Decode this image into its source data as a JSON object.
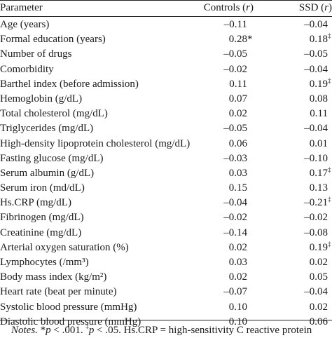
{
  "table": {
    "headers": {
      "parameter": "Parameter",
      "controls": "Controls (r)",
      "ssd": "SSD (r)"
    },
    "rows": [
      {
        "parameter": "Age (years)",
        "controls": "–0.11",
        "controls_mark": "",
        "ssd": "–0.04",
        "ssd_mark": ""
      },
      {
        "parameter": "Formal education (years)",
        "controls": "0.28",
        "controls_mark": "*",
        "ssd": "0.18",
        "ssd_mark": "‡"
      },
      {
        "parameter": "Number of drugs",
        "controls": "–0.05",
        "controls_mark": "",
        "ssd": "–0.05",
        "ssd_mark": ""
      },
      {
        "parameter": "Comorbidity",
        "controls": "–0.02",
        "controls_mark": "",
        "ssd": "–0.04",
        "ssd_mark": ""
      },
      {
        "parameter": "Barthel index (before admission)",
        "controls": "0.11",
        "controls_mark": "",
        "ssd": "0.19",
        "ssd_mark": "‡"
      },
      {
        "parameter": "Hemoglobin (g/dL)",
        "controls": "0.07",
        "controls_mark": "",
        "ssd": "0.08",
        "ssd_mark": ""
      },
      {
        "parameter": "Total cholesterol (mg/dL)",
        "controls": "0.02",
        "controls_mark": "",
        "ssd": "0.11",
        "ssd_mark": ""
      },
      {
        "parameter": "Triglycerides (mg/dL)",
        "controls": "–0.05",
        "controls_mark": "",
        "ssd": "–0.04",
        "ssd_mark": ""
      },
      {
        "parameter": "High-density lipoprotein cholesterol (mg/dL)",
        "controls": "0.06",
        "controls_mark": "",
        "ssd": "0.01",
        "ssd_mark": ""
      },
      {
        "parameter": "Fasting glucose (mg/dL)",
        "controls": "–0.03",
        "controls_mark": "",
        "ssd": "–0.10",
        "ssd_mark": ""
      },
      {
        "parameter": "Serum albumin (g/dL)",
        "controls": "0.03",
        "controls_mark": "",
        "ssd": "0.17",
        "ssd_mark": "‡"
      },
      {
        "parameter": "Serum iron (md/dL)",
        "controls": "0.15",
        "controls_mark": "",
        "ssd": "0.13",
        "ssd_mark": ""
      },
      {
        "parameter": "Hs.CRP (mg/dL)",
        "controls": "–0.04",
        "controls_mark": "",
        "ssd": "–0.21",
        "ssd_mark": "‡"
      },
      {
        "parameter": "Fibrinogen (mg/dL)",
        "controls": "–0.02",
        "controls_mark": "",
        "ssd": "–0.02",
        "ssd_mark": ""
      },
      {
        "parameter": "Creatinine (mg/dL)",
        "controls": "–0.14",
        "controls_mark": "",
        "ssd": "–0.08",
        "ssd_mark": ""
      },
      {
        "parameter": "Arterial oxygen saturation (%)",
        "controls": "0.02",
        "controls_mark": "",
        "ssd": "0.19",
        "ssd_mark": "‡"
      },
      {
        "parameter": "Lymphocytes (/mm³)",
        "controls": "0.03",
        "controls_mark": "",
        "ssd": "0.02",
        "ssd_mark": ""
      },
      {
        "parameter": "Body mass index (kg/m²)",
        "controls": "0.02",
        "controls_mark": "",
        "ssd": "0.05",
        "ssd_mark": ""
      },
      {
        "parameter": "Heart rate (beat per minute)",
        "controls": "–0.07",
        "controls_mark": "",
        "ssd": "–0.04",
        "ssd_mark": ""
      },
      {
        "parameter": "Systolic blood pressure (mmHg)",
        "controls": "0.10",
        "controls_mark": "",
        "ssd": "0.02",
        "ssd_mark": ""
      },
      {
        "parameter": "Diastolic blood pressure (mmHg)",
        "controls": "0.10",
        "controls_mark": "",
        "ssd": "0.06",
        "ssd_mark": ""
      }
    ]
  },
  "notes": {
    "label": "Notes.",
    "p1_symbol": "*",
    "p1_var": "p",
    "p1_text": " < .001. ",
    "p2_symbol": "‡",
    "p2_var": "p",
    "p2_text": " < .05. Hs.CRP = high-sensitivity C reactive protein"
  }
}
